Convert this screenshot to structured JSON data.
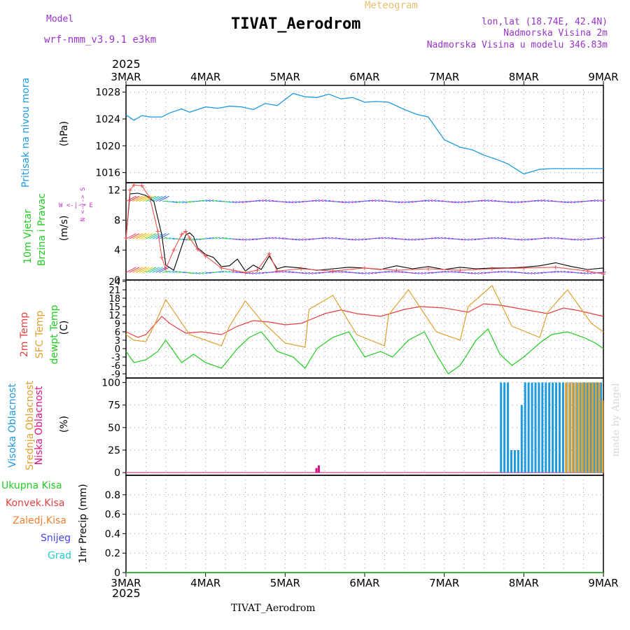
{
  "header": {
    "model_label": "Model",
    "model_name": "wrf-nmm_v3.9.1  e3km",
    "chart_type": "Meteogram",
    "title": "TIVAT_Aerodrom",
    "lonlat": "lon,lat (18.74E, 42.4N)",
    "altitude": "Nadmorska Visina 2m",
    "model_altitude": "Nadmorska Visina u modelu 346.83m",
    "year_top": "2025",
    "year_bottom": "2025",
    "footer_title": "TIVAT_Aerodrom",
    "credit": "made by Angel"
  },
  "colors": {
    "pressure": "#1e9be0",
    "wind_label": "#22cc22",
    "wind_fg": "#cc33cc",
    "t2m": "#e84040",
    "sfc": "#e0a030",
    "dewpt": "#22cc22",
    "cloud_high": "#1e9be0",
    "cloud_mid": "#e0a030",
    "cloud_low": "#dd1188",
    "precip_total": "#22cc22",
    "precip_conv": "#e84040",
    "precip_frz": "#f08030",
    "snow": "#4444ee",
    "hail": "#22cccc",
    "axis_purple": "#9933cc"
  },
  "labels": {
    "pressure": {
      "name": "Pritisak na nivou mora",
      "unit": "(hPa)"
    },
    "wind": {
      "name1": "10m Vjetar",
      "name2": "Brzina i Pravac",
      "unit": "(m/s)",
      "compass": [
        "W",
        "<-|->",
        "E",
        "N",
        "<-|->",
        "S"
      ]
    },
    "temp": {
      "name1": "2m Temp",
      "name2": "SFC Temp",
      "name3": "dewpt Temp",
      "unit": "(C)"
    },
    "cloud": {
      "name1": "Visoka Oblacnost",
      "name2": "Srednja Oblacnost",
      "name3": "Niska Oblacnost",
      "unit": "(%)"
    },
    "precip": {
      "items": [
        "Ukupna Kisa",
        "Konvek.Kisa",
        "Zaledj.Kisa",
        "Snijeg",
        "Grad"
      ],
      "unit": "1hr Precip (mm)"
    }
  },
  "chart_data": {
    "type": "line",
    "x_ticks": [
      "3MAR",
      "4MAR",
      "5MAR",
      "6MAR",
      "7MAR",
      "8MAR",
      "9MAR"
    ],
    "x_range_days": [
      0,
      6
    ],
    "panels": {
      "pressure": {
        "ylabel": "hPa",
        "ylim": [
          1014.5,
          1029
        ],
        "yticks": [
          1016,
          1020,
          1024,
          1028
        ],
        "series": [
          {
            "name": "Pritisak na nivou mora",
            "x": [
              0,
              0.1,
              0.2,
              0.3,
              0.45,
              0.55,
              0.7,
              0.8,
              1.0,
              1.15,
              1.3,
              1.45,
              1.6,
              1.75,
              1.9,
              2.1,
              2.25,
              2.4,
              2.55,
              2.7,
              2.85,
              3.0,
              3.15,
              3.3,
              3.5,
              3.65,
              3.8,
              4.0,
              4.2,
              4.35,
              4.5,
              4.65,
              4.8,
              5.0,
              5.2,
              5.35,
              5.5,
              5.65,
              5.8,
              5.9,
              5.97,
              6.0
            ],
            "y": [
              1024.6,
              1023.8,
              1024.5,
              1024.3,
              1024.3,
              1024.9,
              1025.5,
              1025.0,
              1025.8,
              1025.6,
              1025.9,
              1025.8,
              1025.4,
              1026.3,
              1026.0,
              1027.8,
              1027.3,
              1027.2,
              1027.7,
              1027.0,
              1027.2,
              1026.5,
              1026.6,
              1026.5,
              1025.4,
              1024.7,
              1024.3,
              1020.9,
              1019.8,
              1019.4,
              1018.6,
              1018.0,
              1017.3,
              1015.8,
              1016.5,
              1016.6,
              1016.6,
              1016.6,
              1016.6,
              1016.6,
              1016.6,
              1016.6
            ]
          }
        ]
      },
      "wind": {
        "ylabel": "m/s",
        "ylim": [
          0,
          13
        ],
        "yticks": [
          0,
          4,
          8,
          12
        ],
        "speed": {
          "x": [
            0,
            0.05,
            0.15,
            0.25,
            0.35,
            0.45,
            0.5,
            0.6,
            0.7,
            0.75,
            0.8,
            0.85,
            0.9,
            1.0,
            1.1,
            1.2,
            1.3,
            1.4,
            1.5,
            1.6,
            1.7,
            1.8,
            1.9,
            2.0,
            2.2,
            2.4,
            2.6,
            2.8,
            3.0,
            3.2,
            3.4,
            3.6,
            3.8,
            4.0,
            4.2,
            4.4,
            4.6,
            4.8,
            5.0,
            5.2,
            5.4,
            5.6,
            5.8,
            6.0
          ],
          "y": [
            5.5,
            11.5,
            11.6,
            11.3,
            10.5,
            6.0,
            2.0,
            1.3,
            4.5,
            6.0,
            6.3,
            5.8,
            4.3,
            3.4,
            3.0,
            1.8,
            1.9,
            2.8,
            1.2,
            2.0,
            1.4,
            3.2,
            1.5,
            1.8,
            1.6,
            1.3,
            1.5,
            1.7,
            1.6,
            1.4,
            1.9,
            1.5,
            1.8,
            1.4,
            1.7,
            1.5,
            1.6,
            1.6,
            1.7,
            1.9,
            2.3,
            1.8,
            1.4,
            1.6
          ]
        },
        "gust": {
          "x": [
            0,
            0.05,
            0.1,
            0.2,
            0.3,
            0.4,
            0.45,
            0.5,
            0.6,
            0.7,
            0.75,
            0.8,
            0.9,
            1.0,
            1.2,
            1.35,
            1.5,
            1.65,
            1.8,
            1.9,
            2.2,
            2.6,
            3.0,
            3.4,
            3.8,
            4.2,
            4.6,
            5.0,
            5.4,
            5.8,
            6.0
          ],
          "y": [
            5.6,
            12.0,
            12.7,
            12.6,
            11.0,
            6.5,
            3.0,
            1.5,
            4.0,
            6.1,
            6.5,
            5.6,
            4.1,
            3.2,
            1.6,
            1.3,
            1.0,
            1.3,
            3.5,
            1.2,
            1.5,
            1.2,
            1.6,
            1.3,
            1.5,
            1.3,
            1.5,
            1.6,
            1.7,
            1.2,
            0.8
          ]
        },
        "barb_rows": [
          1,
          5.5,
          10.5
        ]
      },
      "temp": {
        "ylabel": "C",
        "ylim": [
          -10.5,
          24.5
        ],
        "yticks": [
          -9,
          -6,
          -3,
          0,
          3,
          6,
          9,
          12,
          15,
          18,
          21,
          24
        ],
        "series": [
          {
            "name": "2m Temp",
            "x": [
              0,
              0.15,
              0.25,
              0.45,
              0.55,
              0.75,
              0.95,
              1.2,
              1.4,
              1.6,
              1.8,
              2.0,
              2.2,
              2.5,
              2.7,
              2.9,
              3.2,
              3.5,
              3.7,
              4.0,
              4.3,
              4.5,
              4.7,
              5.0,
              5.3,
              5.5,
              5.7,
              6.0
            ],
            "y": [
              6,
              4,
              5,
              11.5,
              9,
              5.5,
              6,
              5,
              8,
              10,
              9.5,
              8.5,
              9,
              12.5,
              13.8,
              12.5,
              11.5,
              14,
              15,
              14.5,
              13,
              16,
              15.5,
              14,
              12.5,
              14.5,
              13.5,
              11.5
            ]
          },
          {
            "name": "SFC Temp",
            "x": [
              0,
              0.1,
              0.25,
              0.35,
              0.5,
              0.8,
              1.0,
              1.2,
              1.3,
              1.5,
              1.7,
              2.0,
              2.25,
              2.3,
              2.6,
              2.9,
              3.25,
              3.3,
              3.55,
              3.9,
              4.2,
              4.3,
              4.6,
              4.85,
              5.2,
              5.3,
              5.55,
              5.85,
              6.0
            ],
            "y": [
              5,
              3,
              2.5,
              8,
              17.5,
              5,
              3,
              1,
              8,
              17,
              10,
              2,
              0.5,
              14,
              19,
              5,
              1,
              12,
              21,
              6,
              3,
              15,
              22.5,
              8,
              4,
              13,
              21,
              9,
              6
            ]
          },
          {
            "name": "dewpt Temp",
            "x": [
              0,
              0.1,
              0.25,
              0.4,
              0.5,
              0.7,
              0.85,
              1.0,
              1.2,
              1.4,
              1.55,
              1.7,
              1.9,
              2.1,
              2.25,
              2.4,
              2.6,
              2.8,
              3.0,
              3.2,
              3.35,
              3.55,
              3.75,
              3.9,
              4.05,
              4.2,
              4.4,
              4.55,
              4.7,
              4.85,
              5.0,
              5.2,
              5.35,
              5.55,
              5.75,
              5.9,
              6.0
            ],
            "y": [
              -1,
              -5,
              -4,
              -1,
              3,
              -5,
              -2,
              -5,
              -7,
              0,
              4,
              6,
              -1,
              -3,
              -7,
              0,
              4,
              6,
              -3,
              -1,
              -3,
              3,
              6,
              -2,
              -9,
              -6,
              3,
              7,
              -2,
              -6,
              -3,
              2,
              5,
              6,
              4,
              2,
              0
            ]
          }
        ]
      },
      "cloud": {
        "ylabel": "%",
        "ylim": [
          -3,
          105
        ],
        "yticks": [
          0,
          25,
          50,
          75,
          100
        ],
        "high_bars": {
          "x_start": 4.7,
          "x_end": 6.0,
          "values": [
            100,
            100,
            100,
            25,
            25,
            25,
            75,
            100,
            100,
            100,
            100,
            100,
            100,
            100,
            100,
            100,
            100,
            100,
            100,
            100,
            100,
            100,
            100,
            100,
            100,
            100,
            100,
            100,
            100,
            100
          ]
        },
        "mid_bars": {
          "x_start": 5.5,
          "x_end": 6.0,
          "values": [
            100,
            100,
            100,
            100,
            100,
            100,
            100,
            100,
            100,
            100,
            100,
            80
          ]
        },
        "low_bars": {
          "x": [
            2.38,
            2.41
          ],
          "values": [
            5,
            8
          ]
        }
      },
      "precip": {
        "ylabel": "mm",
        "ylim": [
          0,
          1.0
        ],
        "yticks": [
          0,
          0.2,
          0.4,
          0.6,
          0.8
        ],
        "series": [
          {
            "name": "Ukupna Kisa",
            "x": [
              0,
              6
            ],
            "y": [
              0,
              0
            ]
          }
        ]
      }
    }
  }
}
